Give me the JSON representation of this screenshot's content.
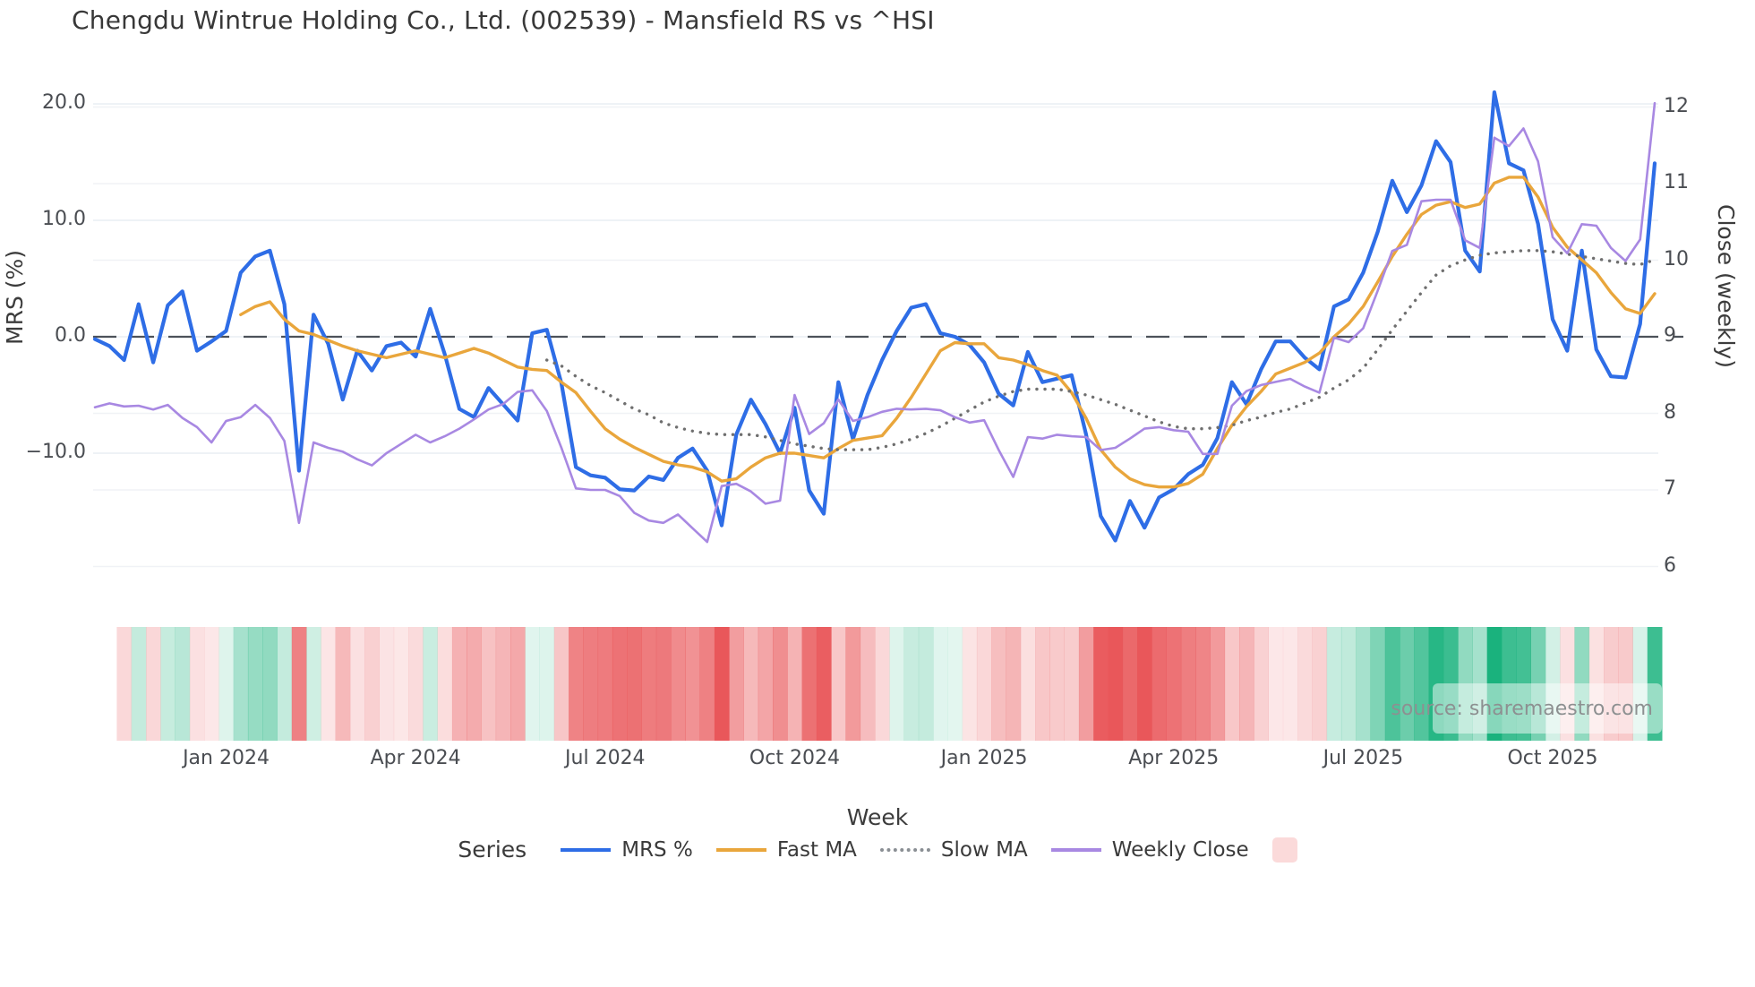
{
  "title": "Chengdu Wintrue Holding Co., Ltd. (002539) - Mansfield RS vs ^HSI",
  "watermark": "source: sharemaestro.com",
  "legend": {
    "title": "Series",
    "items": [
      {
        "label": "MRS %",
        "color": "#2e6de6",
        "style": "solid"
      },
      {
        "label": "Fast MA",
        "color": "#e9a63c",
        "style": "solid"
      },
      {
        "label": "Slow MA",
        "color": "#8a8f94",
        "style": "dotted"
      },
      {
        "label": "Weekly Close",
        "color": "#a888e2",
        "style": "solid"
      },
      {
        "label": "",
        "color": "#fbdada",
        "style": "swatch"
      }
    ]
  },
  "chart_data": {
    "type": "line",
    "title": "Chengdu Wintrue Holding Co., Ltd. (002539) - Mansfield RS vs ^HSI",
    "xlabel": "Week",
    "grid": true,
    "legend_position": "bottom",
    "weeks_count": 108,
    "x_ticks": {
      "labels": [
        "Jan 2024",
        "Apr 2024",
        "Jul 2024",
        "Oct 2024",
        "Jan 2025",
        "Apr 2025",
        "Jul 2025",
        "Oct 2025"
      ],
      "week_indices": [
        9,
        22,
        35,
        48,
        61,
        74,
        87,
        100
      ]
    },
    "left_axis": {
      "label": "MRS (%)",
      "tick_labels": [
        "20.0",
        "10.0",
        "0.0",
        "−10.0"
      ],
      "tick_values": [
        20,
        10,
        0,
        -10
      ],
      "approx_range": [
        -21,
        23
      ]
    },
    "right_axis": {
      "label": "Close (weekly)",
      "tick_labels": [
        "12",
        "11",
        "10",
        "9",
        "8",
        "7",
        "6"
      ],
      "tick_values": [
        12,
        11,
        10,
        9,
        8,
        7,
        6
      ],
      "approx_range": [
        5.7,
        12.4
      ]
    },
    "zero_dashed_line_mrs": 0,
    "series": [
      {
        "name": "MRS %",
        "axis": "left",
        "color": "#2e6de6",
        "style": "solid",
        "width": 4.2,
        "values": [
          -0.2,
          -0.8,
          -2.0,
          2.8,
          -2.2,
          2.7,
          3.9,
          -1.2,
          -0.4,
          0.5,
          5.5,
          6.9,
          7.4,
          2.8,
          -11.5,
          1.9,
          -0.6,
          -5.4,
          -1.2,
          -2.9,
          -0.8,
          -0.5,
          -1.7,
          2.4,
          -1.5,
          -6.2,
          -6.9,
          -4.4,
          -5.8,
          -7.2,
          0.3,
          0.6,
          -4.0,
          -11.2,
          -11.9,
          -12.1,
          -13.1,
          -13.2,
          -12.0,
          -12.3,
          -10.4,
          -9.6,
          -11.5,
          -16.2,
          -8.4,
          -5.4,
          -7.5,
          -10.0,
          -6.1,
          -13.2,
          -15.2,
          -3.9,
          -8.8,
          -5.0,
          -2.0,
          0.5,
          2.5,
          2.8,
          0.3,
          0.0,
          -0.7,
          -2.2,
          -4.9,
          -5.9,
          -1.3,
          -3.9,
          -3.6,
          -3.3,
          -8.4,
          -15.4,
          -17.5,
          -14.1,
          -16.4,
          -13.8,
          -13.1,
          -11.8,
          -11.0,
          -8.7,
          -3.9,
          -5.8,
          -2.8,
          -0.4,
          -0.4,
          -1.8,
          -2.8,
          2.6,
          3.2,
          5.5,
          9.0,
          13.4,
          10.7,
          13.0,
          16.8,
          15.0,
          7.4,
          5.6,
          21.0,
          14.9,
          14.3,
          9.7,
          1.5,
          -1.2,
          7.4,
          -1.1,
          -3.4,
          -3.5,
          1.1,
          14.9
        ]
      },
      {
        "name": "Fast MA",
        "axis": "left",
        "color": "#e9a63c",
        "style": "solid",
        "width": 3.4,
        "values": [
          null,
          null,
          null,
          null,
          null,
          null,
          null,
          null,
          null,
          null,
          1.9,
          2.6,
          3.0,
          1.5,
          0.5,
          0.2,
          -0.3,
          -0.8,
          -1.2,
          -1.5,
          -1.8,
          -1.5,
          -1.2,
          -1.5,
          -1.8,
          -1.4,
          -1.0,
          -1.4,
          -2.0,
          -2.6,
          -2.8,
          -2.9,
          -3.9,
          -4.8,
          -6.4,
          -7.9,
          -8.8,
          -9.5,
          -10.1,
          -10.7,
          -11.0,
          -11.2,
          -11.6,
          -12.4,
          -12.2,
          -11.2,
          -10.4,
          -10.0,
          -10.0,
          -10.2,
          -10.4,
          -9.6,
          -8.9,
          -8.7,
          -8.5,
          -7.0,
          -5.2,
          -3.2,
          -1.2,
          -0.5,
          -0.6,
          -0.6,
          -1.8,
          -2.0,
          -2.4,
          -2.9,
          -3.3,
          -4.8,
          -7.0,
          -9.7,
          -11.2,
          -12.2,
          -12.7,
          -12.9,
          -12.9,
          -12.6,
          -11.8,
          -9.6,
          -7.6,
          -6.0,
          -4.7,
          -3.2,
          -2.7,
          -2.2,
          -1.4,
          0.0,
          1.1,
          2.6,
          4.7,
          6.9,
          8.8,
          10.5,
          11.3,
          11.6,
          11.1,
          11.4,
          13.2,
          13.7,
          13.7,
          12.0,
          9.4,
          7.7,
          6.6,
          5.5,
          3.8,
          2.4,
          2.0,
          3.7
        ]
      },
      {
        "name": "Slow MA",
        "axis": "left",
        "color": "#6f6f6f",
        "style": "dotted",
        "width": 3,
        "values": [
          null,
          null,
          null,
          null,
          null,
          null,
          null,
          null,
          null,
          null,
          null,
          null,
          null,
          null,
          null,
          null,
          null,
          null,
          null,
          null,
          null,
          null,
          null,
          null,
          null,
          null,
          null,
          null,
          null,
          null,
          null,
          -2.0,
          -2.5,
          -3.4,
          -4.2,
          -4.8,
          -5.5,
          -6.2,
          -6.7,
          -7.4,
          -7.8,
          -8.1,
          -8.3,
          -8.4,
          -8.4,
          -8.4,
          -8.6,
          -8.9,
          -9.2,
          -9.4,
          -9.6,
          -9.7,
          -9.7,
          -9.7,
          -9.5,
          -9.2,
          -8.8,
          -8.3,
          -7.7,
          -7.0,
          -6.3,
          -5.6,
          -5.1,
          -4.7,
          -4.5,
          -4.5,
          -4.5,
          -4.7,
          -5.0,
          -5.4,
          -5.8,
          -6.3,
          -6.8,
          -7.3,
          -7.7,
          -7.9,
          -7.9,
          -7.8,
          -7.6,
          -7.2,
          -6.9,
          -6.5,
          -6.2,
          -5.7,
          -5.2,
          -4.4,
          -3.7,
          -2.7,
          -1.1,
          0.6,
          2.2,
          3.8,
          5.3,
          6.1,
          6.6,
          7.0,
          7.2,
          7.3,
          7.4,
          7.4,
          7.3,
          7.1,
          6.9,
          6.7,
          6.5,
          6.3,
          6.2,
          6.6
        ]
      },
      {
        "name": "Weekly Close",
        "axis": "right",
        "color": "#a888e2",
        "style": "solid",
        "width": 2.6,
        "values": [
          8.08,
          8.13,
          8.09,
          8.1,
          8.05,
          8.11,
          7.94,
          7.82,
          7.62,
          7.9,
          7.95,
          8.11,
          7.94,
          7.64,
          6.57,
          7.62,
          7.55,
          7.5,
          7.4,
          7.32,
          7.48,
          7.6,
          7.72,
          7.62,
          7.7,
          7.8,
          7.92,
          8.05,
          8.12,
          8.28,
          8.3,
          8.03,
          7.55,
          7.02,
          7.0,
          7.0,
          6.92,
          6.7,
          6.6,
          6.57,
          6.68,
          6.5,
          6.32,
          7.05,
          7.08,
          6.98,
          6.82,
          6.86,
          8.24,
          7.73,
          7.87,
          8.18,
          7.9,
          7.95,
          8.02,
          8.06,
          8.05,
          8.06,
          8.04,
          7.95,
          7.88,
          7.91,
          7.52,
          7.17,
          7.69,
          7.67,
          7.72,
          7.7,
          7.69,
          7.52,
          7.55,
          7.67,
          7.8,
          7.82,
          7.78,
          7.76,
          7.47,
          7.47,
          8.1,
          8.29,
          8.37,
          8.41,
          8.45,
          8.35,
          8.27,
          8.99,
          8.93,
          9.11,
          9.6,
          10.12,
          10.2,
          10.77,
          10.79,
          10.79,
          10.26,
          10.16,
          11.6,
          11.49,
          11.72,
          11.29,
          10.3,
          10.09,
          10.47,
          10.45,
          10.16,
          9.99,
          10.27,
          12.05
        ]
      }
    ],
    "heatmap": {
      "description": "weekly color strip below plot, intensity follows MRS % value",
      "basis": "MRS %",
      "positive_color": "#1ab27d",
      "negative_color": "#e9575a"
    }
  }
}
